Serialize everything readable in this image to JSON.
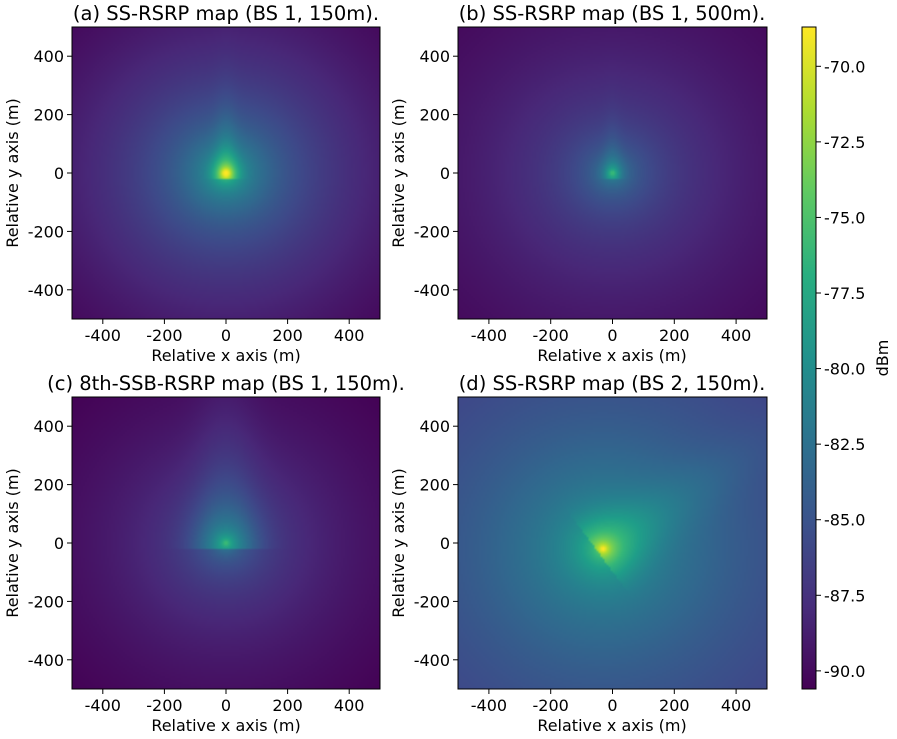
{
  "chart_data": [
    {
      "type": "heatmap",
      "title": "(a) SS-RSRP map (BS 1, 150m).",
      "xlabel": "Relative x axis (m)",
      "ylabel": "Relative y axis (m)",
      "xlim": [
        -500,
        500
      ],
      "ylim": [
        -500,
        500
      ],
      "xticks": [
        -400,
        -200,
        0,
        200,
        400
      ],
      "yticks": [
        400,
        200,
        0,
        -200,
        -400
      ],
      "xtick_labels": [
        "-400",
        "-200",
        "0",
        "200",
        "400"
      ],
      "ytick_labels": [
        "400",
        "200",
        "0",
        "-200",
        "-400"
      ],
      "source": {
        "x": 0,
        "y": 0
      },
      "peak_dBm": -69,
      "edge_dBm": -90,
      "lobe": {
        "angle_deg": 90,
        "length_m": 120,
        "width_m": 25,
        "boost_dB": 5
      }
    },
    {
      "type": "heatmap",
      "title": "(b) SS-RSRP map (BS 1, 500m).",
      "xlabel": "Relative x axis (m)",
      "ylabel": "Relative y axis (m)",
      "xlim": [
        -500,
        500
      ],
      "ylim": [
        -500,
        500
      ],
      "xticks": [
        -400,
        -200,
        0,
        200,
        400
      ],
      "yticks": [
        400,
        200,
        0,
        -200,
        -400
      ],
      "xtick_labels": [
        "-400",
        "-200",
        "0",
        "200",
        "400"
      ],
      "ytick_labels": [
        "400",
        "200",
        "0",
        "-200",
        "-400"
      ],
      "source": {
        "x": 0,
        "y": 0
      },
      "peak_dBm": -77,
      "edge_dBm": -90,
      "lobe": {
        "angle_deg": 90,
        "length_m": 90,
        "width_m": 20,
        "boost_dB": 3
      }
    },
    {
      "type": "heatmap",
      "title": "(c) 8th-SSB-RSRP map (BS 1, 150m).",
      "xlabel": "Relative x axis (m)",
      "ylabel": "Relative y axis (m)",
      "xlim": [
        -500,
        500
      ],
      "ylim": [
        -500,
        500
      ],
      "xticks": [
        -400,
        -200,
        0,
        200,
        400
      ],
      "yticks": [
        400,
        200,
        0,
        -200,
        -400
      ],
      "xtick_labels": [
        "-400",
        "-200",
        "0",
        "200",
        "400"
      ],
      "ytick_labels": [
        "400",
        "200",
        "0",
        "-200",
        "-400"
      ],
      "source": {
        "x": 0,
        "y": 0
      },
      "peak_dBm": -78,
      "edge_dBm": -90.5,
      "lobe": {
        "angle_deg": 90,
        "length_m": 300,
        "width_m": 70,
        "boost_dB": 4
      }
    },
    {
      "type": "heatmap",
      "title": "(d) SS-RSRP map (BS 2, 150m).",
      "xlabel": "Relative x axis (m)",
      "ylabel": "Relative y axis (m)",
      "xlim": [
        -500,
        500
      ],
      "ylim": [
        -500,
        500
      ],
      "xticks": [
        -400,
        -200,
        0,
        200,
        400
      ],
      "yticks": [
        400,
        200,
        0,
        -200,
        -400
      ],
      "xtick_labels": [
        "-400",
        "-200",
        "0",
        "200",
        "400"
      ],
      "ytick_labels": [
        "400",
        "200",
        "0",
        "-200",
        "-400"
      ],
      "source": {
        "x": -30,
        "y": -20
      },
      "peak_dBm": -69,
      "edge_dBm": -86,
      "lobe": {
        "angle_deg": 35,
        "length_m": 350,
        "width_m": 70,
        "boost_dB": 3
      }
    },
    {
      "type": "colorbar",
      "label": "dBm",
      "colormap": "viridis",
      "range": [
        -90.6,
        -68.7
      ],
      "ticks": [
        -70.0,
        -72.5,
        -75.0,
        -77.5,
        -80.0,
        -82.5,
        -85.0,
        -87.5,
        -90.0
      ],
      "tick_labels": [
        "-70.0",
        "-72.5",
        "-75.0",
        "-77.5",
        "-80.0",
        "-82.5",
        "-85.0",
        "-87.5",
        "-90.0"
      ]
    }
  ]
}
